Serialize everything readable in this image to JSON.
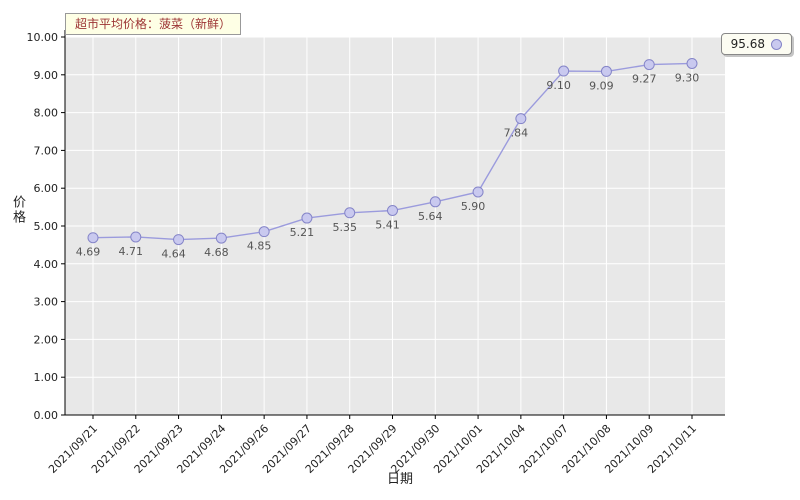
{
  "title": "超市平均价格：菠菜（新鲜）",
  "legend": {
    "label": "95.68"
  },
  "axes": {
    "x_label": "日期",
    "y_label": "价格"
  },
  "chart_data": {
    "type": "line",
    "title": "超市平均价格：菠菜（新鲜）",
    "x": [
      "2021/09/21",
      "2021/09/22",
      "2021/09/23",
      "2021/09/24",
      "2021/09/26",
      "2021/09/27",
      "2021/09/28",
      "2021/09/29",
      "2021/09/30",
      "2021/10/01",
      "2021/10/04",
      "2021/10/07",
      "2021/10/08",
      "2021/10/09",
      "2021/10/11"
    ],
    "values": [
      4.69,
      4.71,
      4.64,
      4.68,
      4.85,
      5.21,
      5.35,
      5.41,
      5.64,
      5.9,
      7.84,
      9.1,
      9.09,
      9.27,
      9.3
    ],
    "data_labels": [
      "4.69",
      "4.71",
      "4.64",
      "4.68",
      "4.85",
      "5.21",
      "5.35",
      "5.41",
      "5.64",
      "5.90",
      "7.84",
      "9.10",
      "9.09",
      "9.27",
      "9.30"
    ],
    "xlabel": "日期",
    "ylabel": "价格",
    "ylim": [
      0,
      10
    ],
    "ytick_step": 1,
    "ytick_labels": [
      "0.00",
      "1.00",
      "2.00",
      "3.00",
      "4.00",
      "5.00",
      "6.00",
      "7.00",
      "8.00",
      "9.00",
      "10.00"
    ],
    "legend_label": "95.68",
    "legend_position": "top-right",
    "grid": true,
    "colors": {
      "line": "#9b9bdd",
      "marker_fill": "#c9c9ef",
      "marker_stroke": "#8585c8",
      "plot_bg": "#e8e8e8",
      "grid": "#ffffff",
      "axis": "#000000",
      "tick_text": "#222222",
      "data_label_text": "#555555",
      "title_text": "#9c3333",
      "title_bg": "#feffe5"
    }
  }
}
